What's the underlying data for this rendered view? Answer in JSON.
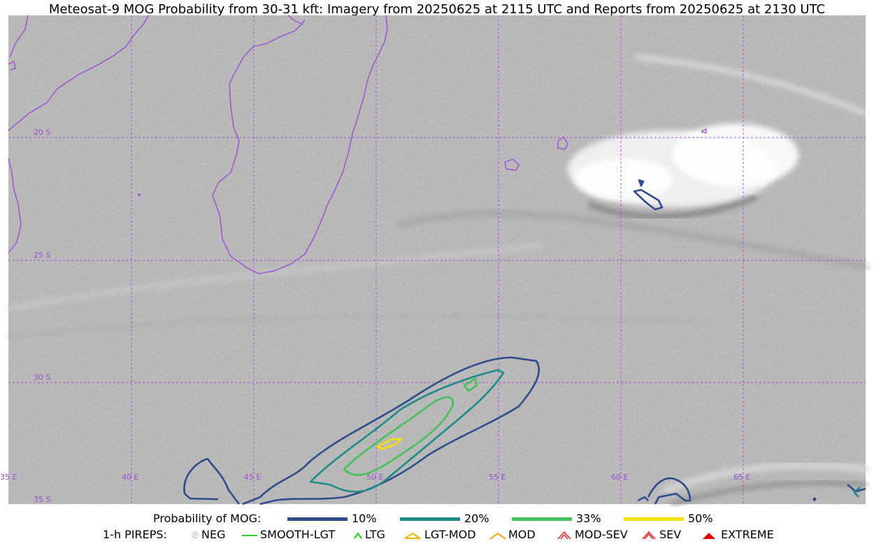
{
  "title": "Meteosat-9 MOG Probability from 30-31 kft: Imagery from 20250625 at 2115 UTC and Reports from 20250625 at 2130 UTC",
  "map": {
    "lat_labels": [
      "20 S",
      "25 S",
      "30 S",
      "35 S"
    ],
    "lon_labels": [
      "35 E",
      "40 E",
      "45 E",
      "50 E",
      "55 E",
      "60 E",
      "65 E"
    ],
    "coastline_color": "#9b4fd1",
    "grid_color": "#9b4fd1"
  },
  "legend": {
    "probability_label": "Probability of MOG:",
    "probability_levels": [
      {
        "label": "10%",
        "color": "#2f4b8a"
      },
      {
        "label": "20%",
        "color": "#1f8a86"
      },
      {
        "label": "33%",
        "color": "#46c05a"
      },
      {
        "label": "50%",
        "color": "#f5e000"
      }
    ],
    "pireps_label": "1-h PIREPS:",
    "pireps": [
      {
        "label": "NEG",
        "color": "#b9b3ee",
        "icon": "neg-circle-icon"
      },
      {
        "label": "SMOOTH-LGT",
        "color": "#33cc33",
        "icon": "smooth-line-icon"
      },
      {
        "label": "LTG",
        "color": "#19d419",
        "icon": "ltg-caret-icon"
      },
      {
        "label": "LGT-MOD",
        "color": "#f0b400",
        "icon": "lgt-mod-caret-icon"
      },
      {
        "label": "MOD",
        "color": "#f0a400",
        "icon": "mod-caret-icon"
      },
      {
        "label": "MOD-SEV",
        "color": "#e03030",
        "icon": "mod-sev-caret-icon"
      },
      {
        "label": "SEV",
        "color": "#e02828",
        "icon": "sev-caret-icon"
      },
      {
        "label": "EXTREME",
        "color": "#e00000",
        "icon": "extreme-caret-icon"
      }
    ]
  }
}
